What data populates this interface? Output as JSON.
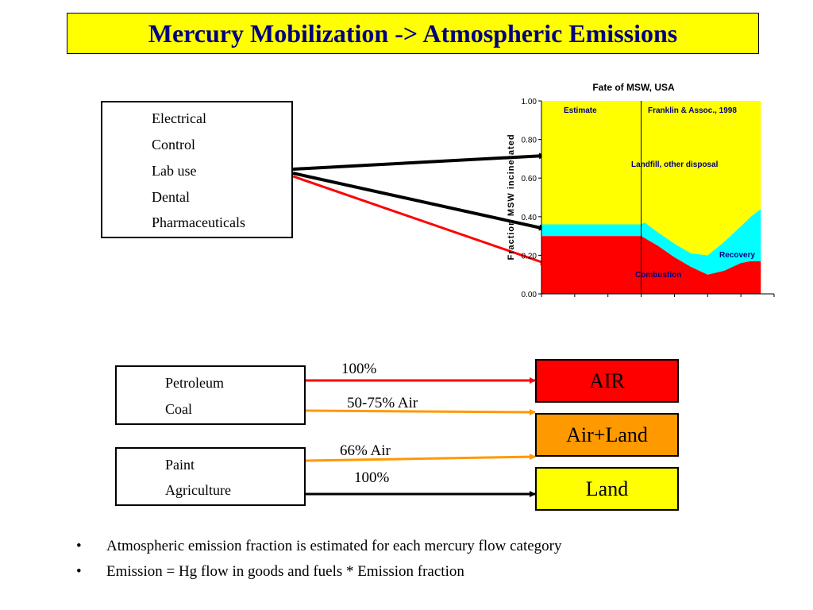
{
  "title": "Mercury Mobilization -> Atmospheric Emissions",
  "top_box": {
    "items": [
      "Electrical",
      "Control",
      "Lab use",
      "Dental",
      "Pharmaceuticals"
    ]
  },
  "mid_boxes": [
    {
      "items": [
        "Petroleum",
        "Coal"
      ]
    },
    {
      "items": [
        "Paint",
        "Agriculture"
      ]
    }
  ],
  "destinations": {
    "air": "AIR",
    "air_land": "Air+Land",
    "land": "Land"
  },
  "arrow_labels": {
    "petroleum_air": "100%",
    "coal_airland": "50-75% Air",
    "paint_airland": "66% Air",
    "agriculture_land": "100%"
  },
  "bullets": [
    "Atmospheric emission fraction is estimated for each mercury flow category",
    "Emission  = Hg flow in goods and fuels * Emission fraction"
  ],
  "colors": {
    "title_bg": "#ffff00",
    "title_text": "#000080",
    "air": "#ff0000",
    "air_land": "#ff9900",
    "land": "#ffff00",
    "landfill": "#ffff00",
    "recovery": "#00ffff",
    "combustion": "#ff0000"
  },
  "chart_data": {
    "type": "area",
    "title": "Fate of MSW, USA",
    "ylabel": "Fraction MSW incinerated",
    "xlabel": "",
    "xlim": [
      1930,
      2000
    ],
    "ylim": [
      0,
      1
    ],
    "x_ticks": [
      "1930",
      "1940",
      "1950",
      "1960",
      "1970",
      "1980",
      "1990",
      "2000"
    ],
    "y_ticks": [
      "0.00",
      "0.20",
      "0.40",
      "0.60",
      "0.80",
      "1.00"
    ],
    "x": [
      1930,
      1960,
      1961,
      1965,
      1970,
      1975,
      1980,
      1985,
      1990,
      1993,
      1996
    ],
    "series": [
      {
        "name": "Combustion",
        "values": [
          0.3,
          0.3,
          0.29,
          0.25,
          0.19,
          0.14,
          0.1,
          0.12,
          0.16,
          0.17,
          0.17
        ]
      },
      {
        "name": "Recovery",
        "values": [
          0.06,
          0.06,
          0.08,
          0.07,
          0.07,
          0.07,
          0.1,
          0.15,
          0.19,
          0.23,
          0.27
        ]
      },
      {
        "name": "Landfill, other disposal",
        "values": [
          0.64,
          0.64,
          0.63,
          0.68,
          0.74,
          0.79,
          0.8,
          0.73,
          0.65,
          0.6,
          0.56
        ]
      }
    ],
    "annotations": [
      "Estimate",
      "Franklin & Assoc., 1998",
      "Landfill, other disposal",
      "Recovery",
      "Combustion"
    ],
    "grid": false,
    "legend": "none"
  }
}
